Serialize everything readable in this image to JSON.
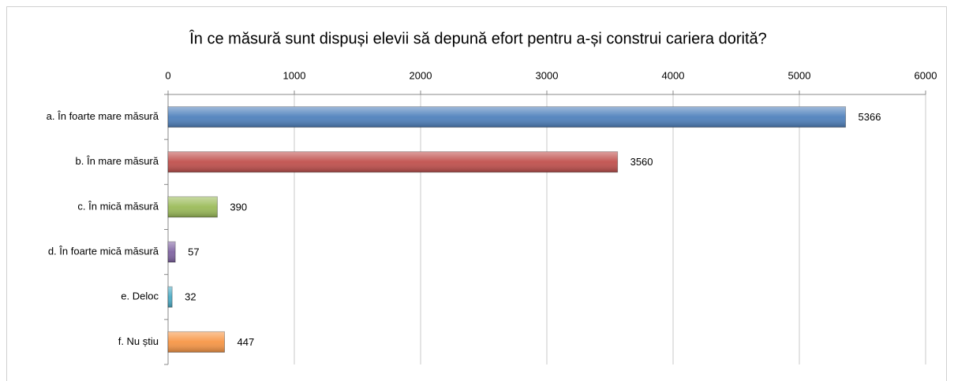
{
  "chart_data": {
    "type": "bar",
    "orientation": "horizontal",
    "title": "În ce măsură sunt dispuși elevii să depună efort pentru a-și construi cariera dorită?",
    "categories": [
      "a. În foarte mare măsură",
      "b. În mare măsură",
      "c. În mică măsură",
      "d. În foarte mică măsură",
      "e. Deloc",
      "f. Nu știu"
    ],
    "values": [
      5366,
      3560,
      390,
      57,
      32,
      447
    ],
    "colors": [
      "#4f81bd",
      "#c0504d",
      "#9bbb59",
      "#8064a2",
      "#4bacc6",
      "#f79646"
    ],
    "xlim": [
      0,
      6000
    ],
    "xticks": [
      0,
      1000,
      2000,
      3000,
      4000,
      5000,
      6000
    ],
    "grid": true
  }
}
